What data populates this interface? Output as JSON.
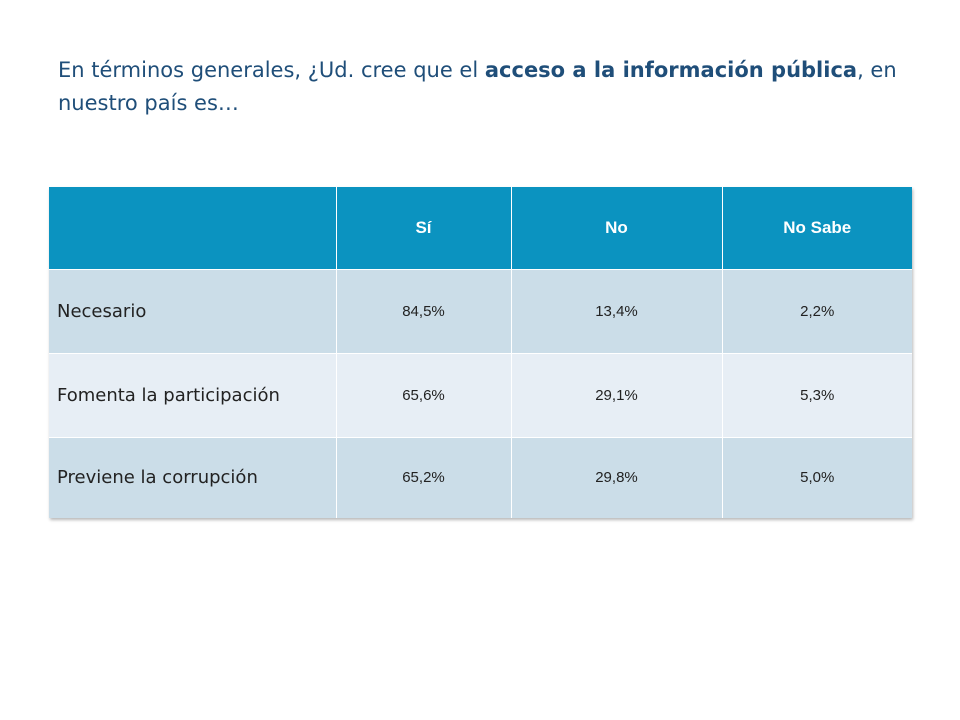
{
  "title": {
    "before": "En términos generales, ¿Ud. cree que el ",
    "bold": "acceso a la información pública",
    "after": ", en nuestro país es…"
  },
  "table": {
    "header": {
      "blank": "",
      "col_si": "Sí",
      "col_no": "No",
      "col_no_sabe": "No Sabe"
    },
    "rows": [
      {
        "label": "Necesario",
        "si": "84,5%",
        "no": "13,4%",
        "no_sabe": "2,2%"
      },
      {
        "label": "Fomenta la participación",
        "si": "65,6%",
        "no": "29,1%",
        "no_sabe": "5,3%"
      },
      {
        "label": "Previene la corrupción",
        "si": "65,2%",
        "no": "29,8%",
        "no_sabe": "5,0%"
      }
    ]
  },
  "colors": {
    "title_text": "#1f4e79",
    "header_bg": "#0b93c0",
    "row_dark_bg": "#cbdde8",
    "row_light_bg": "#e7eef5"
  }
}
